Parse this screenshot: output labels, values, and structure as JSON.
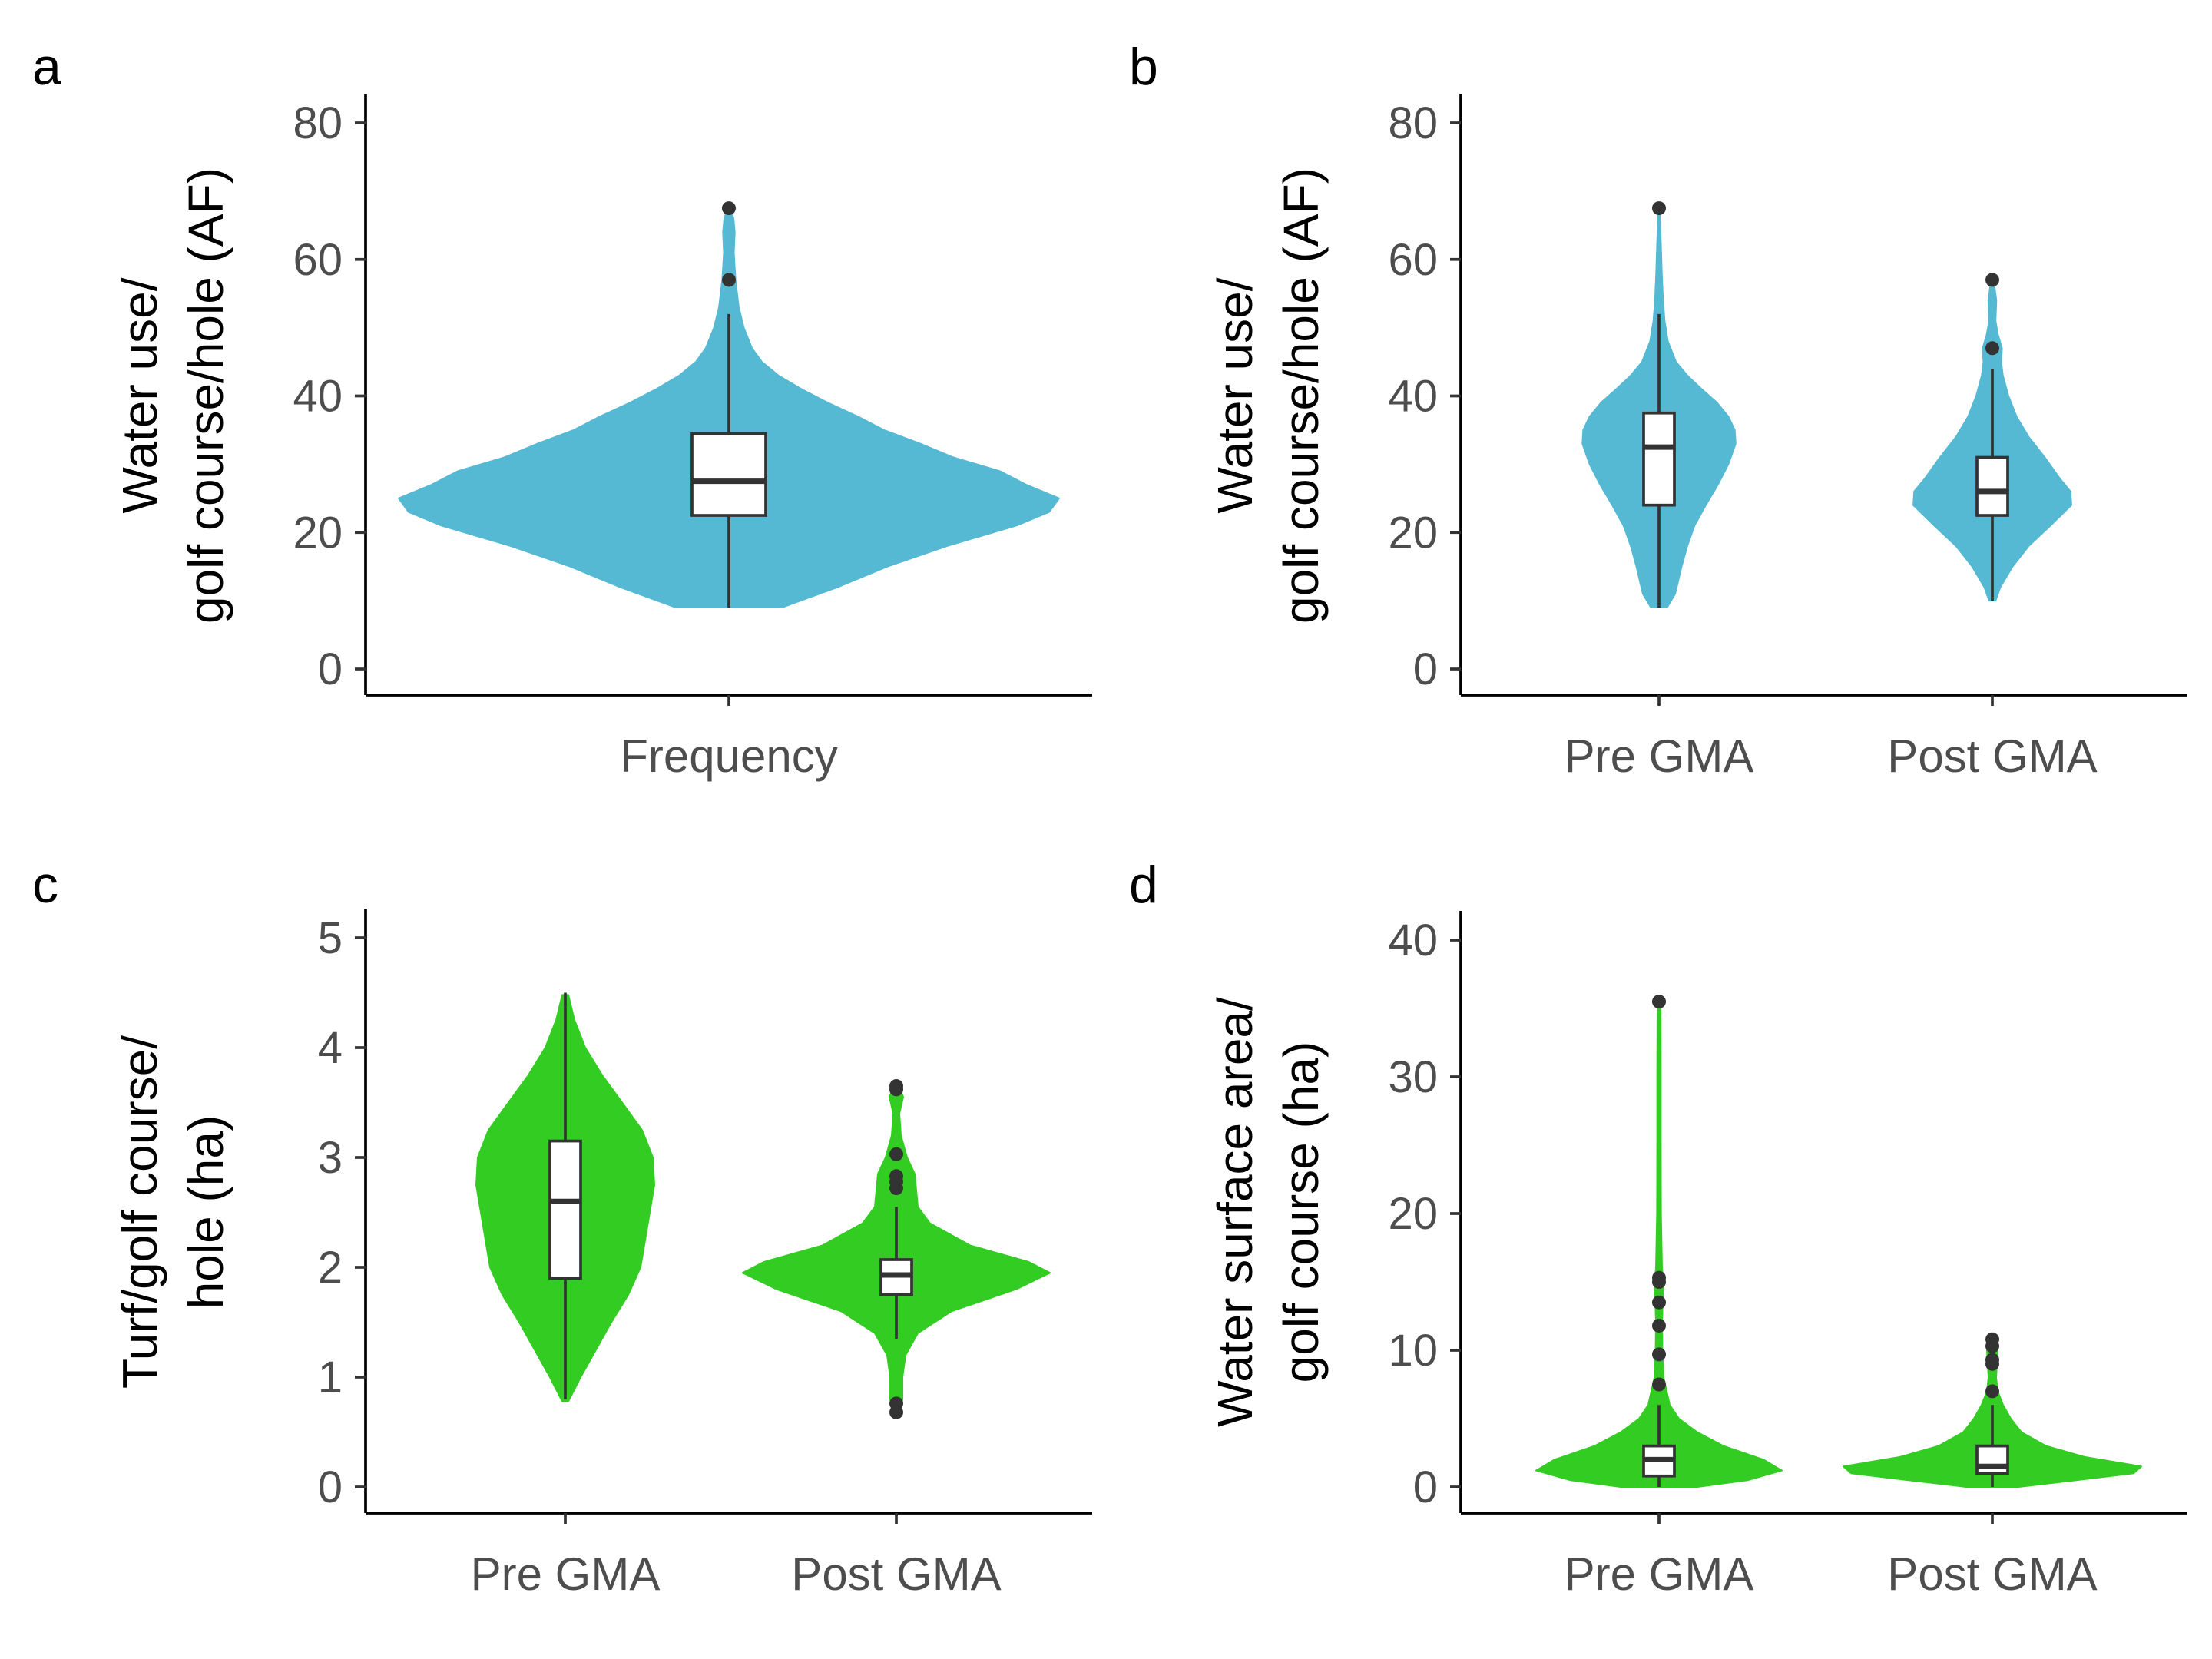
{
  "colors": {
    "water_use": "#56b9d3",
    "turf": "#33cc22",
    "box_stroke": "#333333"
  },
  "chart_data": [
    {
      "panel": "a",
      "type": "violin",
      "ylabel_lines": [
        "Water use/",
        "golf course/hole (AF)"
      ],
      "ylim": [
        0,
        80
      ],
      "yticks": [
        0,
        20,
        40,
        60,
        80
      ],
      "categories": [
        "Frequency"
      ],
      "series": [
        {
          "category": "Frequency",
          "color": "#56b9d3",
          "box": {
            "q1": 22.5,
            "median": 27.5,
            "q3": 34.5,
            "whisker_low": 9,
            "whisker_high": 52
          },
          "outliers": [
            57,
            67.5
          ],
          "violin": [
            [
              9,
              0.16
            ],
            [
              12,
              0.33
            ],
            [
              15,
              0.48
            ],
            [
              18,
              0.66
            ],
            [
              21,
              0.87
            ],
            [
              23,
              0.97
            ],
            [
              25,
              1.0
            ],
            [
              27,
              0.9
            ],
            [
              29,
              0.82
            ],
            [
              31,
              0.68
            ],
            [
              33,
              0.58
            ],
            [
              35,
              0.47
            ],
            [
              37,
              0.39
            ],
            [
              39,
              0.3
            ],
            [
              41,
              0.22
            ],
            [
              43,
              0.15
            ],
            [
              45,
              0.1
            ],
            [
              47,
              0.07
            ],
            [
              50,
              0.045
            ],
            [
              53,
              0.03
            ],
            [
              57,
              0.02
            ],
            [
              61,
              0.015
            ],
            [
              64,
              0.018
            ],
            [
              66,
              0.014
            ],
            [
              67.5,
              0.004
            ]
          ]
        }
      ]
    },
    {
      "panel": "b",
      "type": "violin",
      "ylabel_lines": [
        "Water use/",
        "golf course/hole (AF)"
      ],
      "ylim": [
        0,
        80
      ],
      "yticks": [
        0,
        20,
        40,
        60,
        80
      ],
      "categories": [
        "Pre GMA",
        "Post GMA"
      ],
      "series": [
        {
          "category": "Pre GMA",
          "color": "#56b9d3",
          "box": {
            "q1": 24,
            "median": 32.5,
            "q3": 37.5,
            "whisker_low": 9,
            "whisker_high": 52
          },
          "outliers": [
            67.5
          ],
          "violin": [
            [
              9,
              0.1
            ],
            [
              11,
              0.2
            ],
            [
              13,
              0.24
            ],
            [
              15,
              0.28
            ],
            [
              18,
              0.35
            ],
            [
              21,
              0.44
            ],
            [
              24,
              0.58
            ],
            [
              27,
              0.73
            ],
            [
              30,
              0.86
            ],
            [
              33,
              0.95
            ],
            [
              35,
              0.94
            ],
            [
              37,
              0.86
            ],
            [
              39,
              0.72
            ],
            [
              41,
              0.53
            ],
            [
              43,
              0.35
            ],
            [
              45,
              0.21
            ],
            [
              48,
              0.11
            ],
            [
              51,
              0.07
            ],
            [
              54,
              0.05
            ],
            [
              58,
              0.035
            ],
            [
              62,
              0.025
            ],
            [
              65,
              0.015
            ],
            [
              67.5,
              0.005
            ]
          ]
        },
        {
          "category": "Post GMA",
          "color": "#56b9d3",
          "box": {
            "q1": 22.5,
            "median": 26,
            "q3": 31,
            "whisker_low": 10,
            "whisker_high": 44
          },
          "outliers": [
            47,
            57
          ],
          "violin": [
            [
              10,
              0.04
            ],
            [
              12,
              0.1
            ],
            [
              15,
              0.25
            ],
            [
              18,
              0.45
            ],
            [
              21,
              0.72
            ],
            [
              24,
              0.98
            ],
            [
              26,
              0.97
            ],
            [
              28,
              0.83
            ],
            [
              31,
              0.65
            ],
            [
              34,
              0.45
            ],
            [
              37,
              0.3
            ],
            [
              40,
              0.2
            ],
            [
              43,
              0.13
            ],
            [
              45,
              0.11
            ],
            [
              47,
              0.12
            ],
            [
              49,
              0.07
            ],
            [
              51,
              0.04
            ],
            [
              54,
              0.05
            ],
            [
              57,
              0.015
            ]
          ]
        }
      ]
    },
    {
      "panel": "c",
      "type": "violin",
      "ylabel_lines": [
        "Turf/golf course/",
        "hole (ha)"
      ],
      "ylim": [
        0,
        5
      ],
      "yticks": [
        0,
        1,
        2,
        3,
        4,
        5
      ],
      "categories": [
        "Pre GMA",
        "Post GMA"
      ],
      "series": [
        {
          "category": "Pre GMA",
          "color": "#33cc22",
          "box": {
            "q1": 1.9,
            "median": 2.6,
            "q3": 3.15,
            "whisker_low": 0.8,
            "whisker_high": 4.5
          },
          "outliers": [],
          "violin": [
            [
              0.78,
              0.02
            ],
            [
              1.0,
              0.1
            ],
            [
              1.25,
              0.2
            ],
            [
              1.5,
              0.3
            ],
            [
              1.75,
              0.41
            ],
            [
              2.0,
              0.49
            ],
            [
              2.25,
              0.52
            ],
            [
              2.5,
              0.55
            ],
            [
              2.75,
              0.58
            ],
            [
              3.0,
              0.57
            ],
            [
              3.25,
              0.5
            ],
            [
              3.5,
              0.37
            ],
            [
              3.75,
              0.24
            ],
            [
              4.0,
              0.13
            ],
            [
              4.25,
              0.06
            ],
            [
              4.48,
              0.02
            ]
          ]
        },
        {
          "category": "Post GMA",
          "color": "#33cc22",
          "box": {
            "q1": 1.75,
            "median": 1.93,
            "q3": 2.07,
            "whisker_low": 1.35,
            "whisker_high": 2.55
          },
          "outliers": [
            0.68,
            0.76,
            2.72,
            2.78,
            2.83,
            3.03,
            3.62,
            3.65
          ],
          "violin": [
            [
              0.65,
              0.025
            ],
            [
              0.8,
              0.04
            ],
            [
              1.0,
              0.04
            ],
            [
              1.2,
              0.06
            ],
            [
              1.4,
              0.14
            ],
            [
              1.6,
              0.36
            ],
            [
              1.8,
              0.78
            ],
            [
              1.95,
              1.0
            ],
            [
              2.05,
              0.86
            ],
            [
              2.2,
              0.48
            ],
            [
              2.4,
              0.22
            ],
            [
              2.55,
              0.14
            ],
            [
              2.7,
              0.13
            ],
            [
              2.85,
              0.12
            ],
            [
              3.0,
              0.07
            ],
            [
              3.2,
              0.03
            ],
            [
              3.4,
              0.02
            ],
            [
              3.55,
              0.045
            ],
            [
              3.68,
              0.01
            ]
          ]
        }
      ]
    },
    {
      "panel": "d",
      "type": "violin",
      "ylabel_lines": [
        "Water surface area/",
        "golf course (ha)"
      ],
      "ylim": [
        0,
        40
      ],
      "yticks": [
        0,
        10,
        20,
        30,
        40
      ],
      "categories": [
        "Pre GMA",
        "Post GMA"
      ],
      "series": [
        {
          "category": "Pre GMA",
          "color": "#33cc22",
          "box": {
            "q1": 0.8,
            "median": 2.0,
            "q3": 3.0,
            "whisker_low": 0,
            "whisker_high": 6
          },
          "outliers": [
            7.5,
            9.7,
            11.8,
            13.5,
            15.0,
            15.3,
            35.5
          ],
          "violin": [
            [
              0,
              0.25
            ],
            [
              0.5,
              0.58
            ],
            [
              1.2,
              0.8
            ],
            [
              2.0,
              0.68
            ],
            [
              3.0,
              0.42
            ],
            [
              4.0,
              0.25
            ],
            [
              5.0,
              0.13
            ],
            [
              6.0,
              0.07
            ],
            [
              8.0,
              0.03
            ],
            [
              10.0,
              0.022
            ],
            [
              12.0,
              0.02
            ],
            [
              14.0,
              0.025
            ],
            [
              15.0,
              0.03
            ],
            [
              16.0,
              0.02
            ],
            [
              20.0,
              0.013
            ],
            [
              25.0,
              0.012
            ],
            [
              30.0,
              0.012
            ],
            [
              35.5,
              0.01
            ]
          ]
        },
        {
          "category": "Post GMA",
          "color": "#33cc22",
          "box": {
            "q1": 1.0,
            "median": 1.5,
            "q3": 3.0,
            "whisker_low": 0,
            "whisker_high": 6
          },
          "outliers": [
            7.0,
            9.0,
            9.3,
            10.3,
            10.8
          ],
          "violin": [
            [
              0,
              0.17
            ],
            [
              0.5,
              0.55
            ],
            [
              1.0,
              0.92
            ],
            [
              1.5,
              0.97
            ],
            [
              2.2,
              0.6
            ],
            [
              3.0,
              0.35
            ],
            [
              4.0,
              0.19
            ],
            [
              5.0,
              0.12
            ],
            [
              6.0,
              0.07
            ],
            [
              7.0,
              0.035
            ],
            [
              8.0,
              0.025
            ],
            [
              9.0,
              0.03
            ],
            [
              10.0,
              0.035
            ],
            [
              11.0,
              0.012
            ]
          ]
        }
      ]
    }
  ]
}
